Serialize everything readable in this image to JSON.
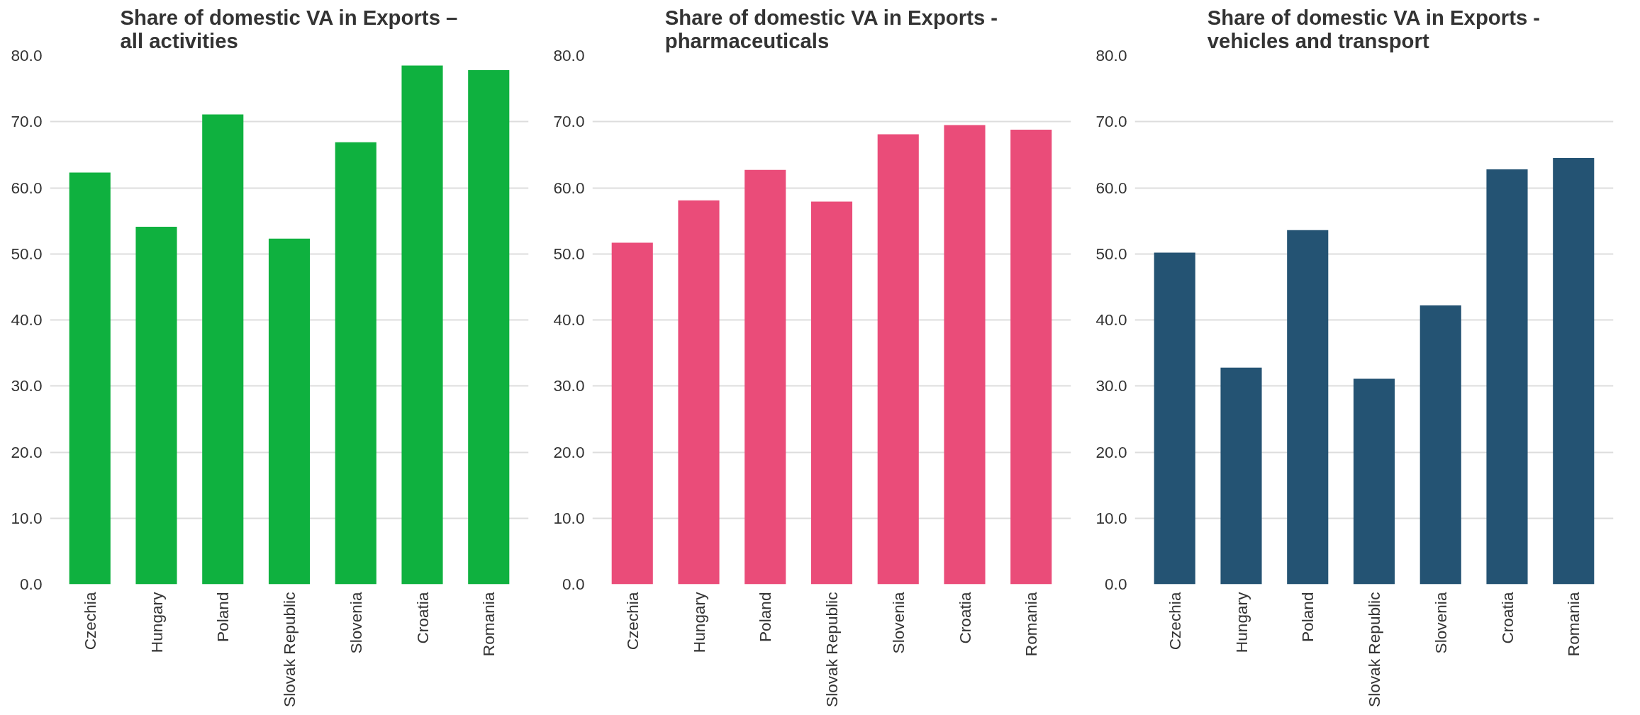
{
  "chart_data": [
    {
      "type": "bar",
      "title": "Share of domestic VA in Exports – all activities",
      "categories": [
        "Czechia",
        "Hungary",
        "Poland",
        "Slovak Republic",
        "Slovenia",
        "Croatia",
        "Romania"
      ],
      "values": [
        62.3,
        54.1,
        71.1,
        52.3,
        66.9,
        78.5,
        77.8
      ],
      "color": "#0fb13f",
      "ylim": [
        0,
        80
      ],
      "yticks": [
        {
          "value": 0,
          "label": "0.0"
        },
        {
          "value": 10,
          "label": "10.0"
        },
        {
          "value": 20,
          "label": "20.0"
        },
        {
          "value": 30,
          "label": "30.0"
        },
        {
          "value": 40,
          "label": "40.0"
        },
        {
          "value": 50,
          "label": "50.0"
        },
        {
          "value": 60,
          "label": "60.0"
        },
        {
          "value": 70,
          "label": "70.0"
        },
        {
          "value": 80,
          "label": "80.0"
        }
      ],
      "grid": "y"
    },
    {
      "type": "bar",
      "title": "Share of domestic VA in Exports - pharmaceuticals",
      "categories": [
        "Czechia",
        "Hungary",
        "Poland",
        "Slovak Republic",
        "Slovenia",
        "Croatia",
        "Romania"
      ],
      "values": [
        51.7,
        58.1,
        62.7,
        57.9,
        68.1,
        69.5,
        68.8
      ],
      "color": "#ea4c79",
      "ylim": [
        0,
        80
      ],
      "yticks": [
        {
          "value": 0,
          "label": "0.0"
        },
        {
          "value": 10,
          "label": "10.0"
        },
        {
          "value": 20,
          "label": "20.0"
        },
        {
          "value": 30,
          "label": "30.0"
        },
        {
          "value": 40,
          "label": "40.0"
        },
        {
          "value": 50,
          "label": "50.0"
        },
        {
          "value": 60,
          "label": "60.0"
        },
        {
          "value": 70,
          "label": "70.0"
        },
        {
          "value": 80,
          "label": "80.0"
        }
      ],
      "grid": "y"
    },
    {
      "type": "bar",
      "title": "Share of domestic VA in Exports - vehicles and transport",
      "categories": [
        "Czechia",
        "Hungary",
        "Poland",
        "Slovak Republic",
        "Slovenia",
        "Croatia",
        "Romania"
      ],
      "values": [
        50.2,
        32.8,
        53.6,
        31.1,
        42.2,
        62.8,
        64.5
      ],
      "color": "#245373",
      "ylim": [
        0,
        80
      ],
      "yticks": [
        {
          "value": 0,
          "label": "0.0"
        },
        {
          "value": 10,
          "label": "10.0"
        },
        {
          "value": 20,
          "label": "20.0"
        },
        {
          "value": 30,
          "label": "30.0"
        },
        {
          "value": 40,
          "label": "40.0"
        },
        {
          "value": 50,
          "label": "50.0"
        },
        {
          "value": 60,
          "label": "60.0"
        },
        {
          "value": 70,
          "label": "70.0"
        },
        {
          "value": 80,
          "label": "80.0"
        }
      ],
      "grid": "y"
    }
  ]
}
